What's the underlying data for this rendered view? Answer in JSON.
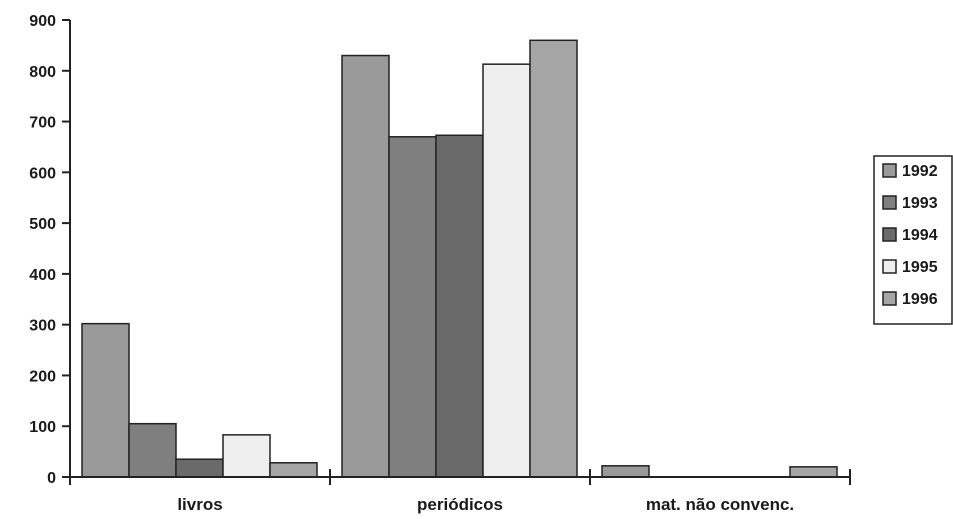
{
  "chart_data": {
    "type": "bar",
    "title": "",
    "xlabel": "",
    "ylabel": "",
    "categories": [
      "livros",
      "periódicos",
      "mat. não convenc."
    ],
    "ylim": [
      0,
      900
    ],
    "yticks": [
      0,
      100,
      200,
      300,
      400,
      500,
      600,
      700,
      800,
      900
    ],
    "grid": false,
    "legend": "right",
    "series": [
      {
        "name": "1992",
        "values": [
          302,
          830,
          22
        ],
        "color": "#9a9a9a"
      },
      {
        "name": "1993",
        "values": [
          105,
          670,
          0
        ],
        "color": "#7f7f7f"
      },
      {
        "name": "1994",
        "values": [
          35,
          673,
          0
        ],
        "color": "#6a6a6a"
      },
      {
        "name": "1995",
        "values": [
          83,
          813,
          0
        ],
        "color": "#efefef"
      },
      {
        "name": "1996",
        "values": [
          28,
          860,
          20
        ],
        "color": "#a6a6a6"
      }
    ]
  }
}
